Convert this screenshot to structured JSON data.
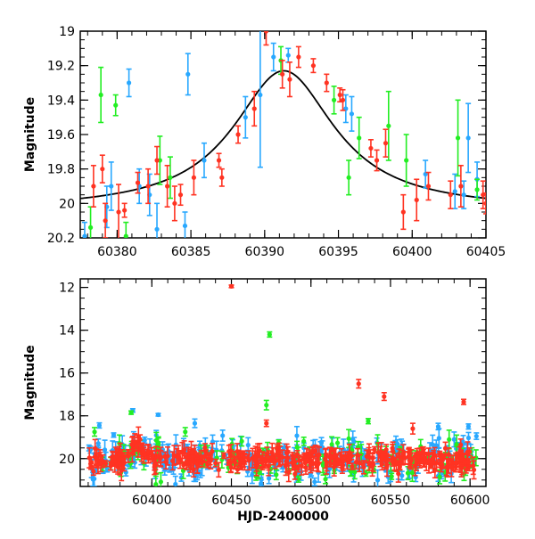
{
  "chart_data": [
    {
      "type": "scatter",
      "panel": "top",
      "title": "",
      "xlabel": "",
      "ylabel": "Magnitude",
      "xlim": [
        60377.5,
        60405
      ],
      "ylim": [
        20.2,
        19.0
      ],
      "y_inverted": true,
      "xticks": [
        60380,
        60385,
        60390,
        60395,
        60400,
        60405
      ],
      "yticks": [
        19,
        19.2,
        19.4,
        19.6,
        19.8,
        20,
        20.2
      ],
      "xtick_labels": [
        "60380",
        "60385",
        "60390",
        "60395",
        "60400",
        "60405"
      ],
      "ytick_labels": [
        "19",
        "19.2",
        "19.4",
        "19.6",
        "19.8",
        "20",
        "20.2"
      ],
      "grid": false,
      "legend": "none",
      "model_curve": {
        "color": "#000000",
        "shape": "lorentzian",
        "peak_x": 60391.3,
        "peak_mag": 19.23,
        "base_mag": 20.04,
        "half_width_days": 4.2
      },
      "series": [
        {
          "color": "#28a8ff",
          "points": [
            [
              60377.8,
              20.19,
              0.08
            ],
            [
              60379.3,
              20.02,
              0.12
            ],
            [
              60379.6,
              19.9,
              0.14
            ],
            [
              60380.8,
              19.3,
              0.08
            ],
            [
              60381.5,
              19.9,
              0.1
            ],
            [
              60382.2,
              19.95,
              0.12
            ],
            [
              60382.7,
              20.15,
              0.15
            ],
            [
              60384.8,
              19.25,
              0.12
            ],
            [
              60384.6,
              20.13,
              0.08
            ],
            [
              60385.9,
              19.75,
              0.1
            ],
            [
              60388.7,
              19.5,
              0.12
            ],
            [
              60389.7,
              19.37,
              0.42
            ],
            [
              60390.6,
              19.15,
              0.08
            ],
            [
              60391.6,
              19.14,
              0.04
            ],
            [
              60395.5,
              19.45,
              0.08
            ],
            [
              60395.9,
              19.48,
              0.1
            ],
            [
              60400.9,
              19.83,
              0.08
            ],
            [
              60402.9,
              19.93,
              0.1
            ],
            [
              60403.8,
              19.62,
              0.2
            ],
            [
              60403.5,
              19.95,
              0.08
            ],
            [
              60404.4,
              19.86,
              0.1
            ]
          ]
        },
        {
          "color": "#22ee22",
          "points": [
            [
              60378.2,
              20.14,
              0.12
            ],
            [
              60378.9,
              19.37,
              0.16
            ],
            [
              60379.9,
              19.43,
              0.06
            ],
            [
              60380.6,
              20.19,
              0.08
            ],
            [
              60382.9,
              19.75,
              0.14
            ],
            [
              60383.6,
              19.85,
              0.12
            ],
            [
              60391.1,
              19.17,
              0.08
            ],
            [
              60394.7,
              19.4,
              0.08
            ],
            [
              60395.7,
              19.85,
              0.1
            ],
            [
              60396.4,
              19.62,
              0.12
            ],
            [
              60398.4,
              19.55,
              0.2
            ],
            [
              60399.6,
              19.75,
              0.15
            ],
            [
              60403.1,
              19.62,
              0.22
            ],
            [
              60404.4,
              19.92,
              0.06
            ]
          ]
        },
        {
          "color": "#ff3322",
          "points": [
            [
              60378.4,
              19.9,
              0.12
            ],
            [
              60379.0,
              19.8,
              0.08
            ],
            [
              60379.2,
              20.1,
              0.1
            ],
            [
              60380.1,
              20.05,
              0.16
            ],
            [
              60380.5,
              20.04,
              0.04
            ],
            [
              60381.4,
              19.88,
              0.06
            ],
            [
              60382.1,
              19.9,
              0.1
            ],
            [
              60382.7,
              19.75,
              0.08
            ],
            [
              60383.4,
              19.9,
              0.12
            ],
            [
              60383.9,
              20.0,
              0.1
            ],
            [
              60384.3,
              19.95,
              0.06
            ],
            [
              60385.2,
              19.85,
              0.1
            ],
            [
              60386.9,
              19.75,
              0.04
            ],
            [
              60387.1,
              19.85,
              0.05
            ],
            [
              60388.2,
              19.6,
              0.05
            ],
            [
              60389.3,
              19.45,
              0.1
            ],
            [
              60390.1,
              19.0,
              0.08
            ],
            [
              60391.2,
              19.25,
              0.08
            ],
            [
              60391.7,
              19.28,
              0.1
            ],
            [
              60392.3,
              19.15,
              0.06
            ],
            [
              60393.3,
              19.2,
              0.04
            ],
            [
              60394.2,
              19.3,
              0.05
            ],
            [
              60395.1,
              19.37,
              0.04
            ],
            [
              60395.3,
              19.4,
              0.06
            ],
            [
              60397.2,
              19.68,
              0.05
            ],
            [
              60397.6,
              19.75,
              0.06
            ],
            [
              60398.2,
              19.65,
              0.08
            ],
            [
              60399.4,
              20.05,
              0.1
            ],
            [
              60400.3,
              19.98,
              0.12
            ],
            [
              60401.1,
              19.9,
              0.08
            ],
            [
              60402.6,
              19.95,
              0.08
            ],
            [
              60403.3,
              19.9,
              0.12
            ],
            [
              60404.8,
              19.95,
              0.08
            ],
            [
              60405.0,
              20.0,
              0.06
            ]
          ]
        }
      ]
    },
    {
      "type": "scatter",
      "panel": "bottom",
      "title": "",
      "xlabel": "HJD-2400000",
      "ylabel": "Magnitude",
      "xlim": [
        60355,
        60610
      ],
      "ylim": [
        21.3,
        11.6
      ],
      "y_inverted": true,
      "xticks": [
        60400,
        60450,
        60500,
        60550,
        60600
      ],
      "yticks": [
        12,
        14,
        16,
        18,
        20
      ],
      "xtick_labels": [
        "60400",
        "60450",
        "60500",
        "60550",
        "60600"
      ],
      "ytick_labels": [
        "12",
        "14",
        "16",
        "18",
        "20"
      ],
      "grid": false,
      "legend": "none",
      "outliers": [
        {
          "color": "#ff3322",
          "x": 60450,
          "y": 11.95,
          "err": 0.06
        },
        {
          "color": "#22ee22",
          "x": 60474,
          "y": 14.2,
          "err": 0.12
        },
        {
          "color": "#22ee22",
          "x": 60472,
          "y": 17.5,
          "err": 0.22
        },
        {
          "color": "#ff3322",
          "x": 60530,
          "y": 16.5,
          "err": 0.2
        },
        {
          "color": "#ff3322",
          "x": 60546,
          "y": 17.1,
          "err": 0.18
        },
        {
          "color": "#ff3322",
          "x": 60596,
          "y": 17.35,
          "err": 0.12
        },
        {
          "color": "#28a8ff",
          "x": 60388,
          "y": 17.75,
          "err": 0.08
        },
        {
          "color": "#22ee22",
          "x": 60387,
          "y": 17.85,
          "err": 0.08
        },
        {
          "color": "#28a8ff",
          "x": 60404,
          "y": 17.95,
          "err": 0.06
        },
        {
          "color": "#28a8ff",
          "x": 60367,
          "y": 18.45,
          "err": 0.12
        },
        {
          "color": "#22ee22",
          "x": 60364,
          "y": 18.75,
          "err": 0.2
        },
        {
          "color": "#28a8ff",
          "x": 60427,
          "y": 18.35,
          "err": 0.2
        },
        {
          "color": "#ff3322",
          "x": 60472,
          "y": 18.35,
          "err": 0.15
        },
        {
          "color": "#22ee22",
          "x": 60536,
          "y": 18.25,
          "err": 0.12
        },
        {
          "color": "#28a8ff",
          "x": 60580,
          "y": 18.5,
          "err": 0.15
        },
        {
          "color": "#28a8ff",
          "x": 60599,
          "y": 18.5,
          "err": 0.12
        },
        {
          "color": "#ff3322",
          "x": 60564,
          "y": 18.6,
          "err": 0.25
        },
        {
          "color": "#22ee22",
          "x": 60421,
          "y": 18.75,
          "err": 0.2
        },
        {
          "color": "#28a8ff",
          "x": 60604,
          "y": 18.95,
          "err": 0.15
        },
        {
          "color": "#28a8ff",
          "x": 60376,
          "y": 18.9,
          "err": 0.1
        }
      ],
      "baseline": [
        {
          "x": 60360,
          "mag": 20.05
        },
        {
          "x": 60380,
          "mag": 20.1
        },
        {
          "x": 60385,
          "mag": 19.95
        },
        {
          "x": 60390,
          "mag": 19.2
        },
        {
          "x": 60396,
          "mag": 19.75
        },
        {
          "x": 60402,
          "mag": 20.0
        },
        {
          "x": 60606,
          "mag": 20.05
        }
      ],
      "series": [
        {
          "color": "#28a8ff",
          "points": []
        },
        {
          "color": "#22ee22",
          "points": []
        },
        {
          "color": "#ff3322",
          "points": []
        }
      ]
    }
  ]
}
